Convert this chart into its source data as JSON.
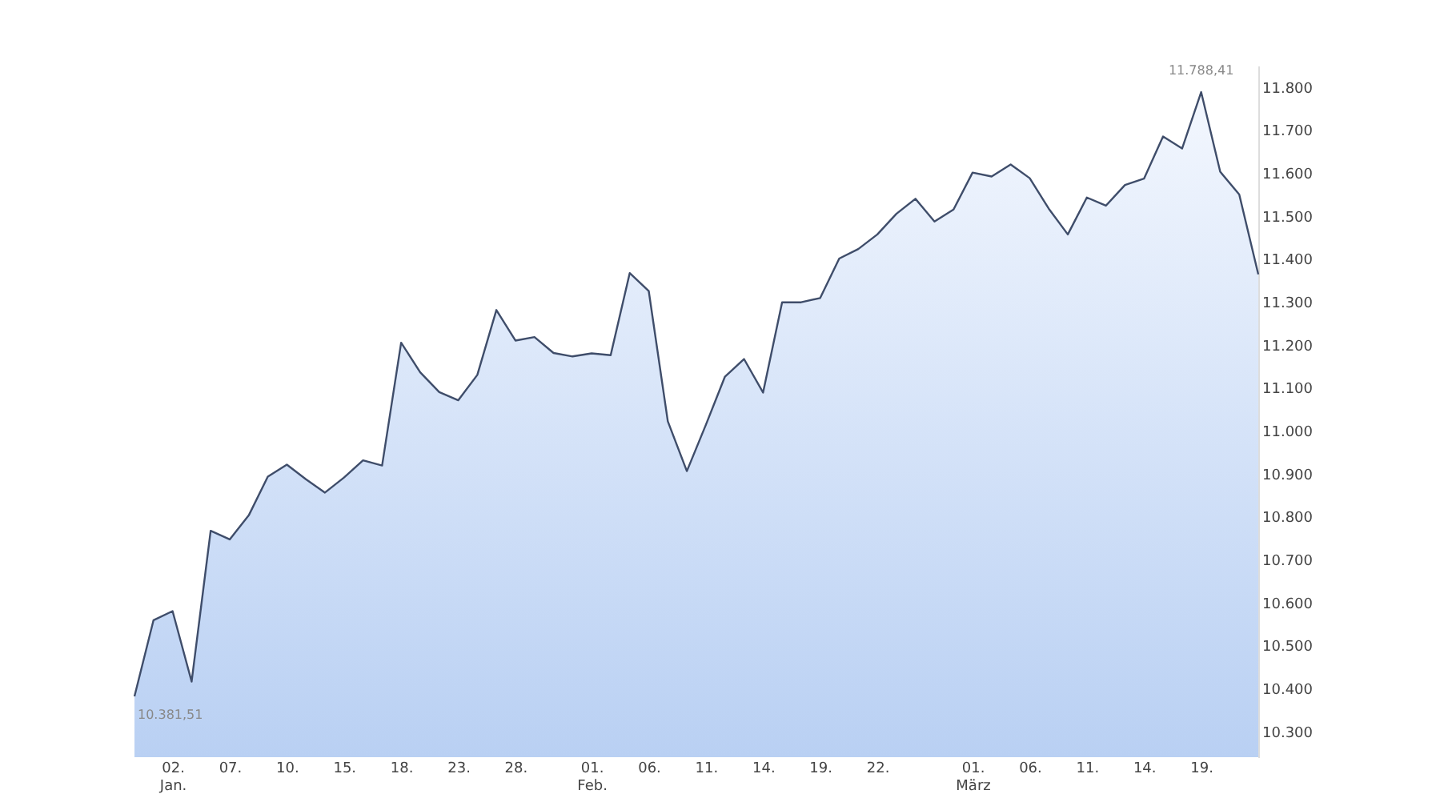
{
  "chart_data": {
    "type": "area",
    "categories": [
      null,
      null,
      "02. Jan.",
      null,
      null,
      "07.",
      null,
      null,
      "10.",
      null,
      null,
      "15.",
      null,
      null,
      "18.",
      null,
      null,
      "23.",
      null,
      null,
      "28.",
      null,
      null,
      null,
      "01. Feb.",
      null,
      null,
      "06.",
      null,
      null,
      "11.",
      null,
      null,
      "14.",
      null,
      null,
      "19.",
      null,
      null,
      "22.",
      null,
      null,
      null,
      null,
      "01. März",
      null,
      null,
      "06.",
      null,
      null,
      "11.",
      null,
      null,
      "14.",
      null,
      null,
      "19.",
      null,
      null,
      null
    ],
    "series": [
      {
        "color": "#b9d0f3",
        "values": [
          10381.51,
          10559,
          10580,
          10416,
          10767,
          10747,
          10803,
          10893,
          10921,
          10887,
          10856,
          10891,
          10931,
          10919,
          11205,
          11136,
          11090,
          11071,
          11130,
          11281,
          11210,
          11218,
          11181,
          11173,
          11180,
          11176,
          11367,
          11325,
          11022,
          10906,
          11014,
          11126,
          11167,
          11089,
          11299,
          11299,
          11309,
          11401,
          11423,
          11457,
          11505,
          11540,
          11487,
          11515,
          11601,
          11592,
          11620,
          11588,
          11517,
          11457,
          11543,
          11524,
          11572,
          11587,
          11685,
          11657,
          11788.41,
          11603,
          11550,
          11364
        ],
        "value_labels": [
          "10.381,51",
          null,
          null,
          null,
          null,
          null,
          null,
          null,
          null,
          null,
          null,
          null,
          null,
          null,
          null,
          null,
          null,
          null,
          null,
          null,
          null,
          null,
          null,
          null,
          null,
          null,
          null,
          null,
          null,
          null,
          null,
          null,
          null,
          null,
          null,
          null,
          null,
          null,
          null,
          null,
          null,
          null,
          null,
          null,
          null,
          null,
          null,
          null,
          null,
          null,
          null,
          null,
          null,
          null,
          null,
          null,
          "11.788,41",
          null,
          null,
          null
        ]
      }
    ],
    "ylim": [
      10240,
      11850
    ],
    "yticks": [
      {
        "value": 10300,
        "label": "10.300"
      },
      {
        "value": 10400,
        "label": "10.400"
      },
      {
        "value": 10500,
        "label": "10.500"
      },
      {
        "value": 10600,
        "label": "10.600"
      },
      {
        "value": 10700,
        "label": "10.700"
      },
      {
        "value": 10800,
        "label": "10.800"
      },
      {
        "value": 10900,
        "label": "10.900"
      },
      {
        "value": 11000,
        "label": "11.000"
      },
      {
        "value": 11100,
        "label": "11.100"
      },
      {
        "value": 11200,
        "label": "11.200"
      },
      {
        "value": 11300,
        "label": "11.300"
      },
      {
        "value": 11400,
        "label": "11.400"
      },
      {
        "value": 11500,
        "label": "11.500"
      },
      {
        "value": 11600,
        "label": "11.600"
      },
      {
        "value": 11700,
        "label": "11.700"
      },
      {
        "value": 11800,
        "label": "11.800"
      }
    ],
    "grid": false
  }
}
